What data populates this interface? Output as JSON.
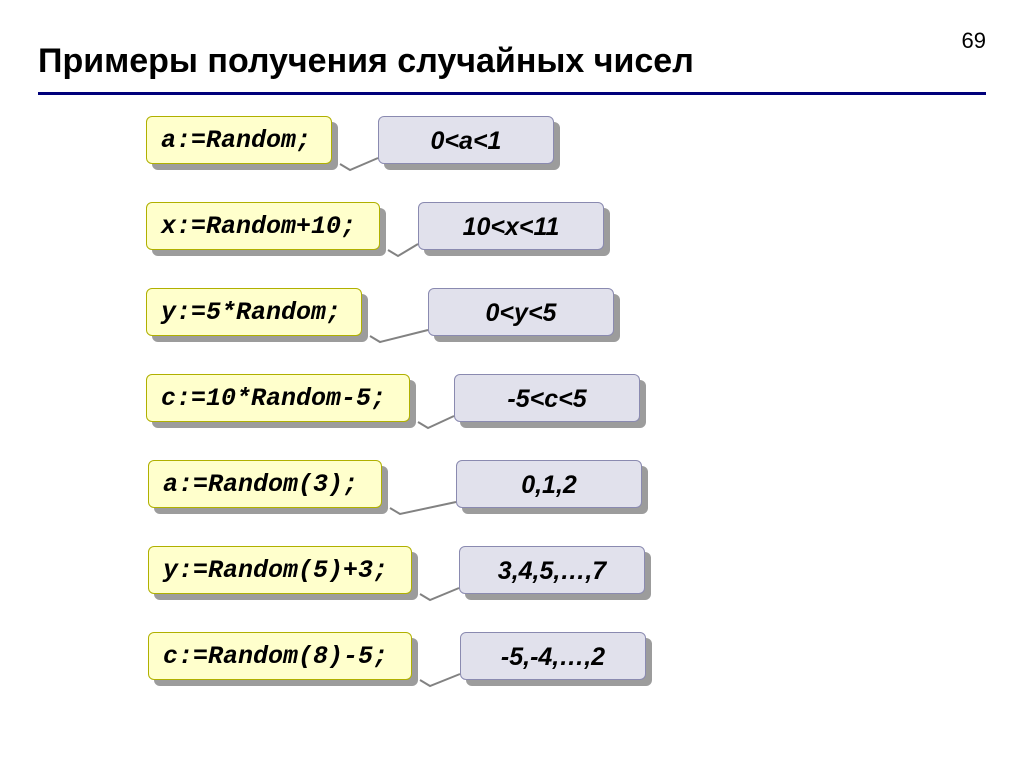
{
  "pageNumber": "69",
  "title": "Примеры получения случайных чисел",
  "colors": {
    "background": "#ffffff",
    "underline": "#00007a",
    "text": "#000000",
    "codeFill": "#ffffcc",
    "codeBorder": "#b0b000",
    "codeShadow": "#9c9c9c",
    "resultFill": "#e1e1ec",
    "resultBorder": "#8a8ab0",
    "resultShadow": "#9c9c9c",
    "lineColor": "#828282"
  },
  "rows": [
    {
      "code": "a:=Random;",
      "result": "0<a<1",
      "codeX": 146,
      "codeW": 186,
      "resultX": 378,
      "resultW": 176
    },
    {
      "code": "x:=Random+10;",
      "result": "10<x<11",
      "codeX": 146,
      "codeW": 234,
      "resultX": 418,
      "resultW": 186
    },
    {
      "code": "y:=5*Random;",
      "result": "0<y<5",
      "codeX": 146,
      "codeW": 216,
      "resultX": 428,
      "resultW": 186
    },
    {
      "code": "c:=10*Random-5;",
      "result": "-5<c<5",
      "codeX": 146,
      "codeW": 264,
      "resultX": 454,
      "resultW": 186
    },
    {
      "code": "a:=Random(3);",
      "result": "0,1,2",
      "codeX": 148,
      "codeW": 234,
      "resultX": 456,
      "resultW": 186
    },
    {
      "code": "y:=Random(5)+3;",
      "result": "3,4,5,…,7",
      "codeX": 148,
      "codeW": 264,
      "resultX": 459,
      "resultW": 186
    },
    {
      "code": "c:=Random(8)-5;",
      "result": "-5,-4,…,2",
      "codeX": 148,
      "codeW": 264,
      "resultX": 460,
      "resultW": 186
    }
  ],
  "shadowOffset": 6,
  "lineThickness": 2
}
